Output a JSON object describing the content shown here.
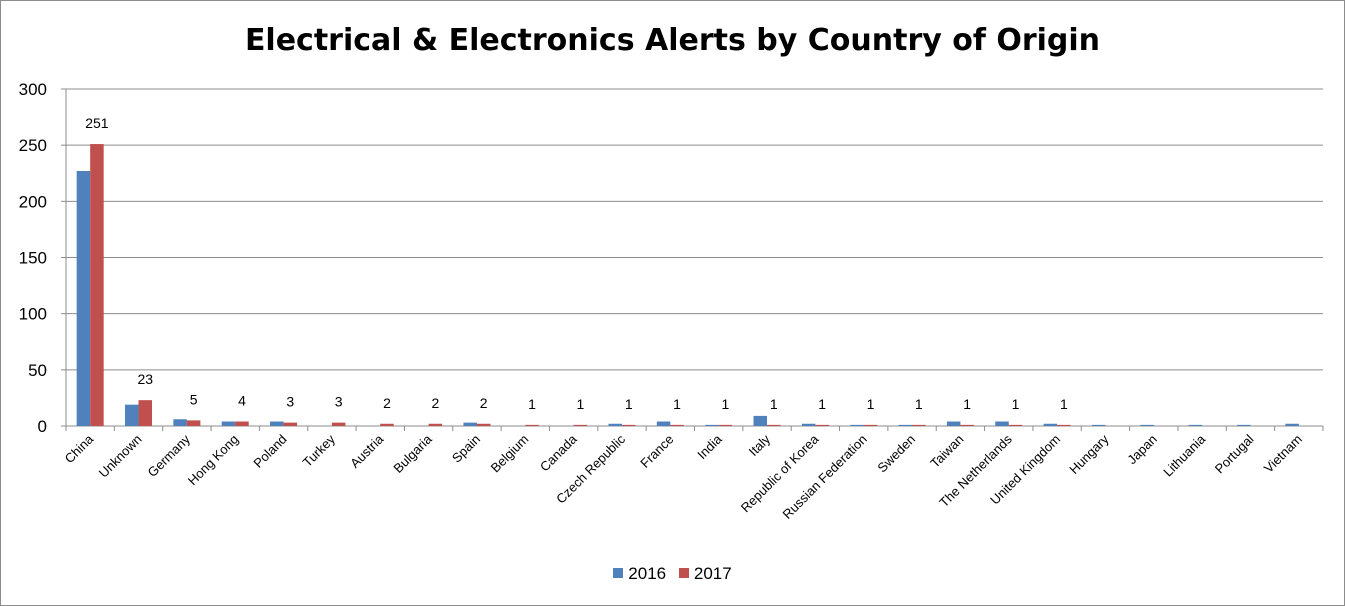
{
  "chart_data": {
    "type": "bar",
    "title": "Electrical & Electronics Alerts by Country of Origin",
    "xlabel": "",
    "ylabel": "",
    "ylim": [
      0,
      300
    ],
    "yticks": [
      0,
      50,
      100,
      150,
      200,
      250,
      300
    ],
    "grid": true,
    "legend_position": "bottom",
    "categories": [
      "China",
      "Unknown",
      "Germany",
      "Hong Kong",
      "Poland",
      "Turkey",
      "Austria",
      "Bulgaria",
      "Spain",
      "Belgium",
      "Canada",
      "Czech Republic",
      "France",
      "India",
      "Italy",
      "Republic of Korea",
      "Russian Federation",
      "Sweden",
      "Taiwan",
      "The Netherlands",
      "United Kingdom",
      "Hungary",
      "Japan",
      "Lithuania",
      "Portugal",
      "Vietnam"
    ],
    "series": [
      {
        "name": "2016",
        "color": "#4f81bd",
        "values": [
          227,
          19,
          6,
          4,
          4,
          0,
          0,
          0,
          3,
          0,
          0,
          2,
          4,
          1,
          9,
          2,
          1,
          1,
          4,
          4,
          2,
          1,
          1,
          1,
          1,
          2
        ]
      },
      {
        "name": "2017",
        "color": "#c0504d",
        "values": [
          251,
          23,
          5,
          4,
          3,
          3,
          2,
          2,
          2,
          1,
          1,
          1,
          1,
          1,
          1,
          1,
          1,
          1,
          1,
          1,
          1,
          0,
          0,
          0,
          0,
          0
        ]
      }
    ],
    "data_labels": {
      "series": "2017",
      "values": [
        "251",
        "23",
        "5",
        "4",
        "3",
        "3",
        "2",
        "2",
        "2",
        "1",
        "1",
        "1",
        "1",
        "1",
        "1",
        "1",
        "1",
        "1",
        "1",
        "1",
        "1",
        "",
        "",
        "",
        "",
        ""
      ]
    }
  }
}
